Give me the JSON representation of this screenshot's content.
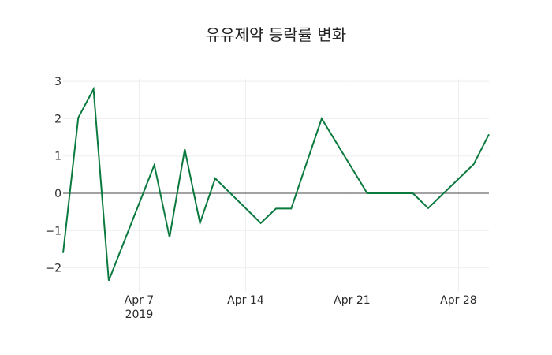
{
  "chart_data": {
    "type": "line",
    "title": "유유제약 등락률 변화",
    "xlabel": "",
    "ylabel": "",
    "x": [
      "2019-04-02",
      "2019-04-03",
      "2019-04-04",
      "2019-04-05",
      "2019-04-08",
      "2019-04-09",
      "2019-04-10",
      "2019-04-11",
      "2019-04-12",
      "2019-04-15",
      "2019-04-16",
      "2019-04-17",
      "2019-04-18",
      "2019-04-19",
      "2019-04-22",
      "2019-04-23",
      "2019-04-24",
      "2019-04-25",
      "2019-04-26",
      "2019-04-29",
      "2019-04-30"
    ],
    "series": [
      {
        "name": "등락률",
        "color": "#0b7a3e",
        "values": [
          -1.6,
          2.03,
          2.79,
          -2.34,
          0.76,
          -1.18,
          1.18,
          -0.8,
          0.4,
          -0.8,
          -0.41,
          -0.41,
          0.8,
          2.0,
          0.0,
          0.0,
          0.0,
          0.0,
          -0.4,
          0.78,
          1.58
        ]
      }
    ],
    "x_ticks": [
      {
        "date": "2019-04-07",
        "label": "Apr 7",
        "sublabel": "2019"
      },
      {
        "date": "2019-04-14",
        "label": "Apr 14"
      },
      {
        "date": "2019-04-21",
        "label": "Apr 21"
      },
      {
        "date": "2019-04-28",
        "label": "Apr 28"
      }
    ],
    "y_ticks": [
      3,
      2,
      1,
      0,
      -1,
      -2
    ],
    "y_tick_labels": [
      "3",
      "2",
      "1",
      "0",
      "−1",
      "−2"
    ],
    "xlim": [
      "2019-04-02",
      "2019-04-30"
    ],
    "ylim": [
      -2.5,
      3.05
    ],
    "grid": true,
    "legend": "none"
  }
}
